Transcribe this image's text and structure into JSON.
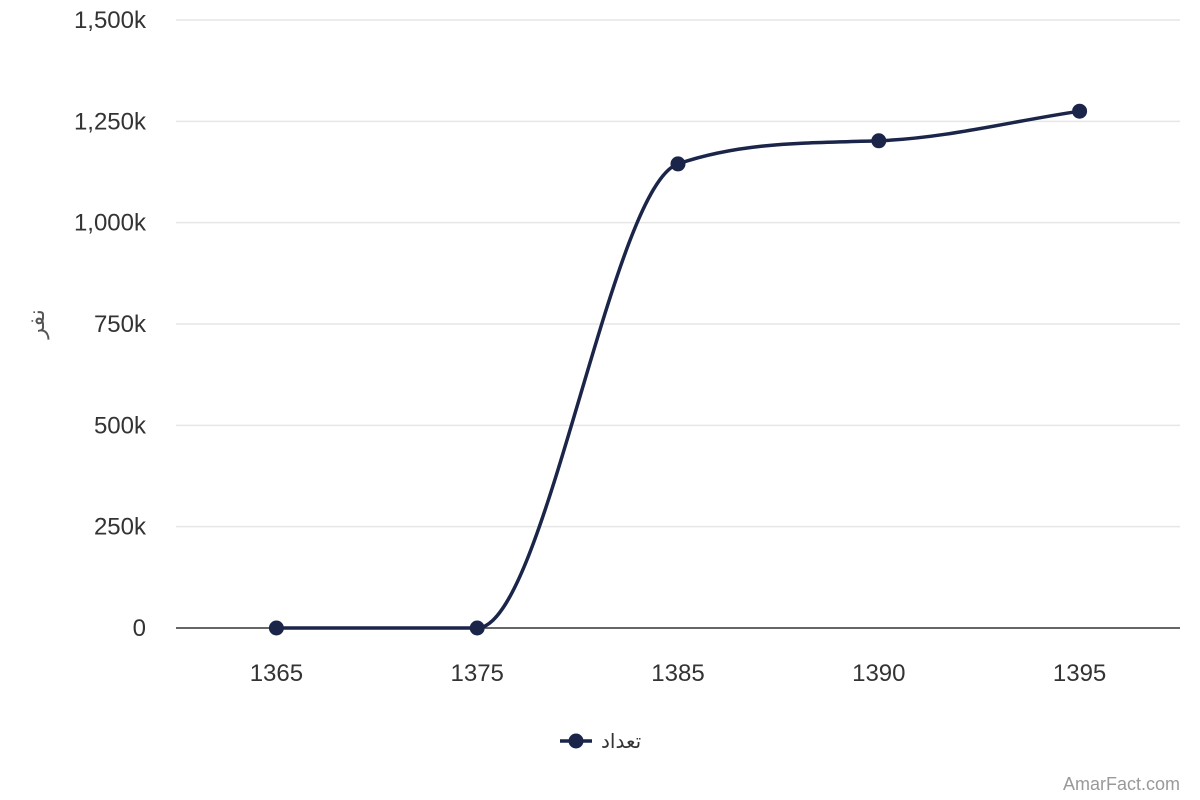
{
  "chart_data": {
    "type": "line",
    "smooth": true,
    "x": [
      "1365",
      "1375",
      "1385",
      "1390",
      "1395"
    ],
    "series": [
      {
        "name": "تعداد",
        "values": [
          0,
          0,
          1145000,
          1202000,
          1275000
        ],
        "color": "#1a2549"
      }
    ],
    "ylabel": "نفر",
    "ylim": [
      0,
      1500000
    ],
    "yticks": [
      0,
      250000,
      500000,
      750000,
      1000000,
      1250000,
      1500000
    ],
    "ytick_labels": [
      "0",
      "250k",
      "500k",
      "750k",
      "1,000k",
      "1,250k",
      "1,500k"
    ],
    "grid": true,
    "legend": "bottom-center"
  },
  "credits": "AmarFact.com",
  "colors": {
    "series": "#1a2549",
    "grid": "#e6e6e6",
    "axis": "#333333"
  }
}
